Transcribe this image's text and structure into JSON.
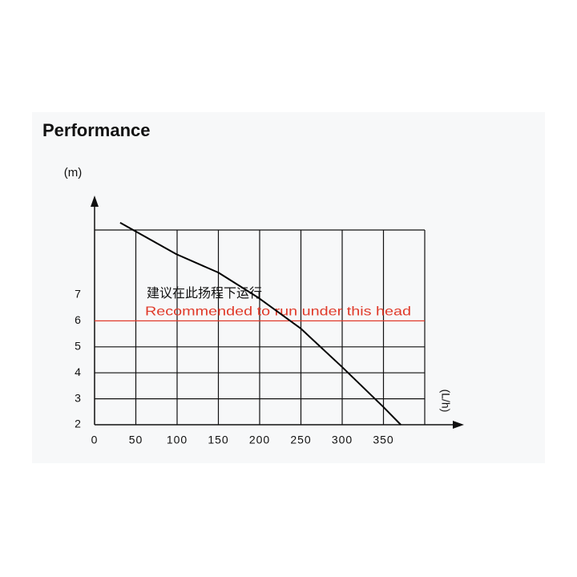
{
  "chart_data": {
    "type": "line",
    "title": "Performance",
    "y_label": "(m)",
    "x_label": "(L/h)",
    "annotation_cn": "建议在此扬程下运行",
    "annotation_en": "Recommended to run under this head",
    "recommended_head": 6,
    "reference_color": "#e03a2a",
    "x": [
      31,
      99,
      150,
      199,
      250,
      300,
      350,
      371
    ],
    "series": [
      {
        "color": "#000000",
        "values": [
          9.78,
          8.57,
          7.86,
          6.88,
          5.7,
          4.22,
          2.68,
          2.0
        ]
      }
    ],
    "xlim": [
      0,
      400
    ],
    "ylim": [
      2,
      9.5
    ],
    "xticks": [
      0,
      50,
      100,
      150,
      200,
      250,
      300,
      350
    ],
    "yticks": [
      2,
      3,
      4,
      5,
      6,
      7
    ],
    "grid": true
  }
}
